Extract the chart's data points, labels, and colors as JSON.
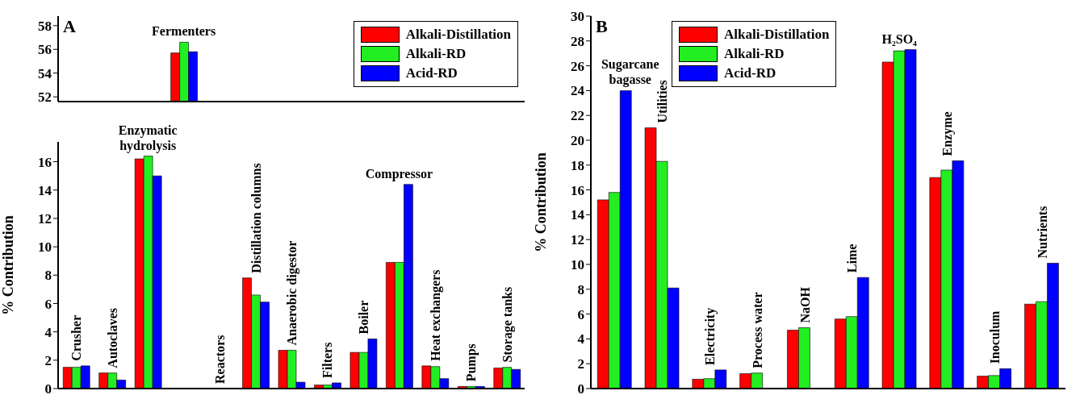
{
  "chart_data": [
    {
      "type": "bar",
      "title": "A",
      "categories": [
        null,
        null,
        null,
        "Fermenters",
        null,
        null,
        null,
        null,
        null,
        null,
        null,
        null,
        null
      ],
      "series": [
        {
          "name": "Alkali-Distillation",
          "color": "#ff0000",
          "values": [
            null,
            null,
            null,
            55.7,
            null,
            null,
            null,
            null,
            null,
            null,
            null,
            null,
            null
          ]
        },
        {
          "name": "Alkali-RD",
          "color": "#22ee22",
          "values": [
            null,
            null,
            null,
            56.6,
            null,
            null,
            null,
            null,
            null,
            null,
            null,
            null,
            null
          ]
        },
        {
          "name": "Acid-RD",
          "color": "#0000ff",
          "values": [
            null,
            null,
            null,
            55.8,
            null,
            null,
            null,
            null,
            null,
            null,
            null,
            null,
            null
          ]
        }
      ],
      "ylim": [
        51.6,
        58.8
      ],
      "yticks": [
        52,
        54,
        56,
        58
      ],
      "tick_labels": "y",
      "legend": "top right"
    },
    {
      "type": "bar",
      "categories": [
        "Crusher",
        "Autoclaves",
        "Enzymatic hydrolysis",
        null,
        "Reactors",
        "Distillation columns",
        "Anaerobic digestor",
        "Filters",
        "Boiler",
        "Compressor",
        "Heat exchangers",
        "Pumps",
        "Storage tanks"
      ],
      "series": [
        {
          "color": "#ff0000",
          "values": [
            1.5,
            1.1,
            16.2,
            null,
            0,
            7.8,
            2.7,
            0.25,
            2.55,
            8.9,
            1.6,
            0.15,
            1.45
          ]
        },
        {
          "color": "#22ee22",
          "values": [
            1.5,
            1.1,
            16.4,
            null,
            0,
            6.6,
            2.7,
            0.25,
            2.55,
            8.9,
            1.55,
            0.15,
            1.5
          ]
        },
        {
          "color": "#0000ff",
          "values": [
            1.6,
            0.6,
            15.0,
            null,
            0,
            6.1,
            0.45,
            0.4,
            3.5,
            14.4,
            0.7,
            0.15,
            1.35
          ]
        }
      ],
      "ylabel": "% Contribution",
      "ylim": [
        0,
        17.4
      ],
      "yticks": [
        0,
        2,
        4,
        6,
        8,
        10,
        12,
        14,
        16
      ],
      "tick_labels": "y"
    },
    {
      "type": "bar",
      "title": "B",
      "categories": [
        "Sugarcane bagasse",
        "Utilities",
        "Electricity",
        "Process water",
        "NaOH",
        "Lime",
        "H₂SO₄",
        "Enzyme",
        "Inoculum",
        "Nutrients"
      ],
      "series": [
        {
          "name": "Alkali-Distillation",
          "color": "#ff0000",
          "values": [
            15.2,
            21.0,
            0.75,
            1.2,
            4.7,
            5.6,
            26.3,
            17.0,
            1.0,
            6.8
          ]
        },
        {
          "name": "Alkali-RD",
          "color": "#22ee22",
          "values": [
            15.8,
            18.3,
            0.8,
            1.25,
            4.9,
            5.8,
            27.2,
            17.6,
            1.05,
            7.0
          ]
        },
        {
          "name": "Acid-RD",
          "color": "#0000ff",
          "values": [
            24.0,
            8.1,
            1.5,
            0,
            0,
            8.95,
            27.3,
            18.35,
            1.6,
            10.1
          ]
        }
      ],
      "ylabel": "% Contribution",
      "ylim": [
        0,
        30
      ],
      "yticks": [
        0,
        2,
        4,
        6,
        8,
        10,
        12,
        14,
        16,
        18,
        20,
        22,
        24,
        26,
        28,
        30
      ],
      "tick_labels": "y",
      "legend": "top"
    }
  ]
}
